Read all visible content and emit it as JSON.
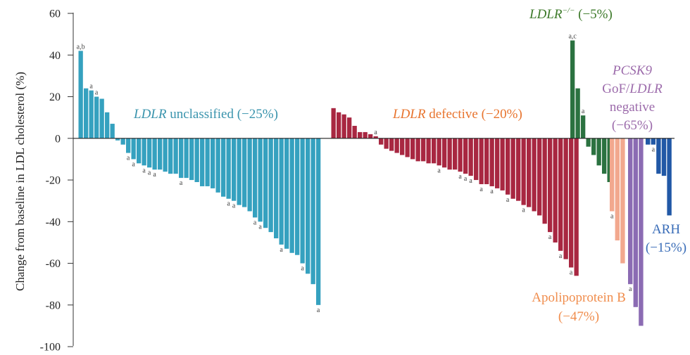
{
  "chart_data": {
    "type": "bar",
    "title": "",
    "xlabel": "",
    "ylabel": "Change from baseline in LDL cholesterol (%)",
    "ylim": [
      -100,
      60
    ],
    "yticks": [
      "60",
      "40",
      "20",
      "0",
      "-20",
      "-40",
      "-60",
      "-80",
      "-100"
    ],
    "grid": false,
    "groups": [
      {
        "key": "ldlr_unclassified",
        "gene": "LDLR",
        "label_rest": " unclassified",
        "pct": " (−25%)",
        "color": "#35a1bf",
        "label_color": "#3a94ad",
        "values": [
          42,
          24,
          23,
          20,
          19,
          12.5,
          7,
          -1,
          -3,
          -7,
          -10,
          -12,
          -13,
          -14,
          -15,
          -15,
          -16,
          -17,
          -17,
          -19,
          -19,
          -20,
          -21,
          -23,
          -23,
          -24,
          -26,
          -28,
          -29,
          -30,
          -32,
          -33,
          -35,
          -38,
          -40,
          -43,
          -45,
          -48,
          -51,
          -53,
          -55,
          -56,
          -60,
          -65,
          -70,
          -80
        ],
        "notes": {
          "0": "a,b",
          "2": "a",
          "3": "a",
          "9": "a",
          "10": "a",
          "12": "a",
          "13": "a",
          "14": "a",
          "19": "a",
          "28": "a",
          "29": "a",
          "33": "a",
          "34": "a",
          "38": "a",
          "42": "a",
          "45": "a"
        }
      },
      {
        "key": "ldlr_defective",
        "gene": "LDLR",
        "label_rest": " defective",
        "pct": " (−20%)",
        "color": "#a82741",
        "label_color": "#e8742e",
        "values": [
          14.5,
          12.5,
          11.5,
          10,
          6,
          3,
          3,
          2,
          1,
          -3,
          -5,
          -6,
          -7,
          -8,
          -9,
          -10,
          -11,
          -11,
          -12,
          -12,
          -13,
          -14,
          -15,
          -15,
          -16,
          -17,
          -18,
          -20,
          -22,
          -22,
          -23,
          -24,
          -25,
          -27,
          -29,
          -30,
          -32,
          -33,
          -35,
          -37,
          -41,
          -45,
          -50,
          -54,
          -58,
          -62,
          -66
        ],
        "notes": {
          "8": "a",
          "20": "a",
          "24": "a",
          "25": "a",
          "26": "a",
          "28": "a",
          "30": "a",
          "33": "a",
          "36": "a",
          "41": "a",
          "43": "a",
          "45": "a"
        }
      },
      {
        "key": "ldlr_null",
        "gene": "LDLR",
        "sup": "−/−",
        "label_rest": "",
        "pct": " (−5%)",
        "color": "#2b7240",
        "label_color": "#3d7a2a",
        "values": [
          47,
          24,
          11,
          -4,
          -8,
          -13,
          -17,
          -21
        ],
        "notes": {
          "0": "a,c",
          "2": "a"
        }
      },
      {
        "key": "apob",
        "gene": "",
        "label_rest": "Apolipoprotein B",
        "pct": "(−47%)",
        "color": "#f2a88e",
        "label_color": "#f08d4d",
        "values": [
          -35,
          -49,
          -60
        ],
        "notes": {
          "0": "a"
        }
      },
      {
        "key": "pcsk9",
        "gene": "PCSK9",
        "label_rest": "GoF/",
        "gene2": "LDLR",
        "line3": "negative",
        "pct": "(−65%)",
        "color": "#8b6bb3",
        "label_color": "#9c6bab",
        "values": [
          -70,
          -81,
          -90
        ],
        "notes": {
          "0": "a"
        }
      },
      {
        "key": "arh",
        "gene": "",
        "label_rest": "ARH",
        "pct": "(−15%)",
        "color": "#2158a6",
        "label_color": "#3a6db8",
        "values": [
          -3,
          -3,
          -17,
          -18,
          -37
        ],
        "notes": {
          "1": "a"
        }
      }
    ]
  }
}
